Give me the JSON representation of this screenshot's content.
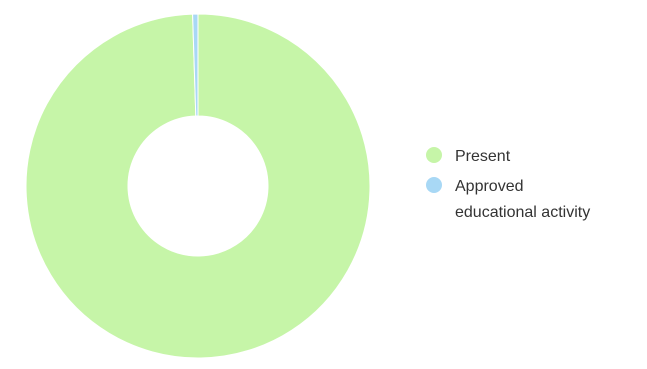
{
  "chart_data": {
    "type": "pie",
    "donut": true,
    "title": "",
    "legend_position": "right",
    "series": [
      {
        "name": "Present",
        "value": 99.5,
        "color": "#c6f5a8",
        "legend_lines": [
          "Present"
        ]
      },
      {
        "name": "Approved educational activity",
        "value": 0.5,
        "color": "#a8d8f5",
        "legend_lines": [
          "Approved",
          "educational activity"
        ]
      }
    ]
  }
}
